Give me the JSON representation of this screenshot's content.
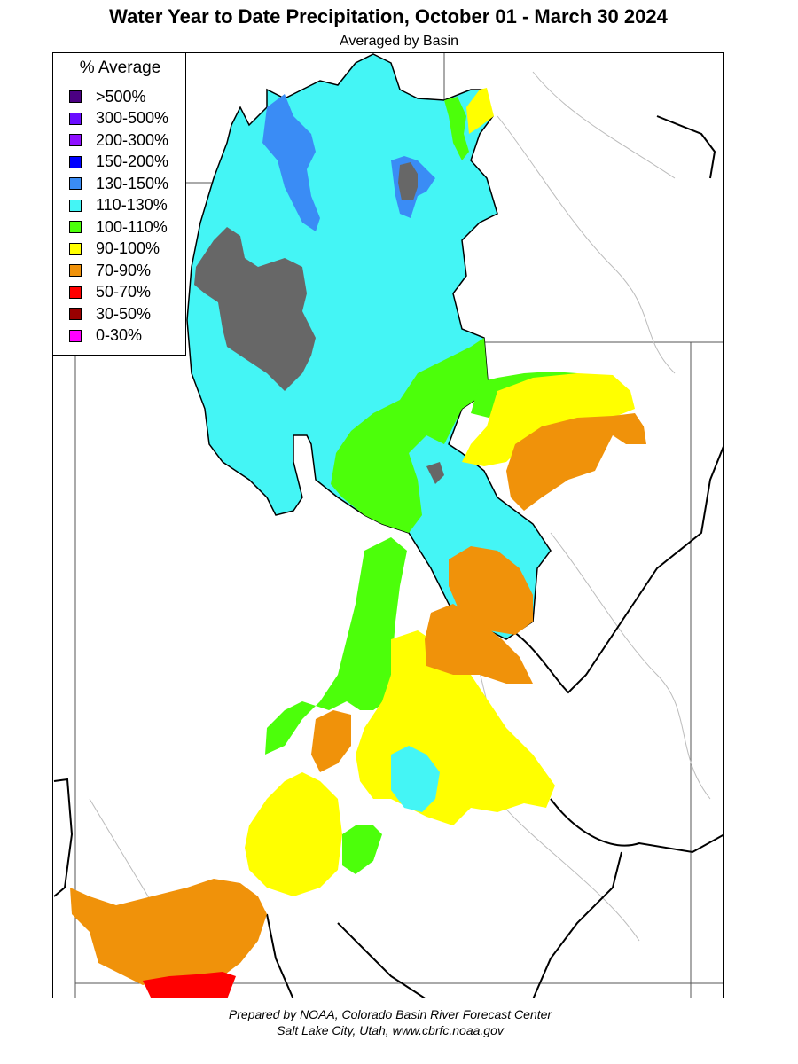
{
  "title": "Water Year to Date Precipitation, October 01  - March 30 2024",
  "subtitle": "Averaged by Basin",
  "legend": {
    "title": "% Average",
    "items": [
      {
        "label": ">500%",
        "color": "#4b0082"
      },
      {
        "label": "300-500%",
        "color": "#6a0dff"
      },
      {
        "label": "200-300%",
        "color": "#8f10ff"
      },
      {
        "label": "150-200%",
        "color": "#0000ff"
      },
      {
        "label": "130-150%",
        "color": "#3a8cf5"
      },
      {
        "label": "110-130%",
        "color": "#44f5f5"
      },
      {
        "label": "100-110%",
        "color": "#4cff0a"
      },
      {
        "label": "90-100%",
        "color": "#ffff00"
      },
      {
        "label": "70-90%",
        "color": "#f0920a"
      },
      {
        "label": "50-70%",
        "color": "#ff0000"
      },
      {
        "label": "30-50%",
        "color": "#990000"
      },
      {
        "label": "0-30%",
        "color": "#ff00ff"
      }
    ]
  },
  "no_data_color": "#676767",
  "footer": {
    "line1": "Prepared by NOAA, Colorado Basin River Forecast Center",
    "line2": "Salt Lake City, Utah, www.cbrfc.noaa.gov"
  }
}
